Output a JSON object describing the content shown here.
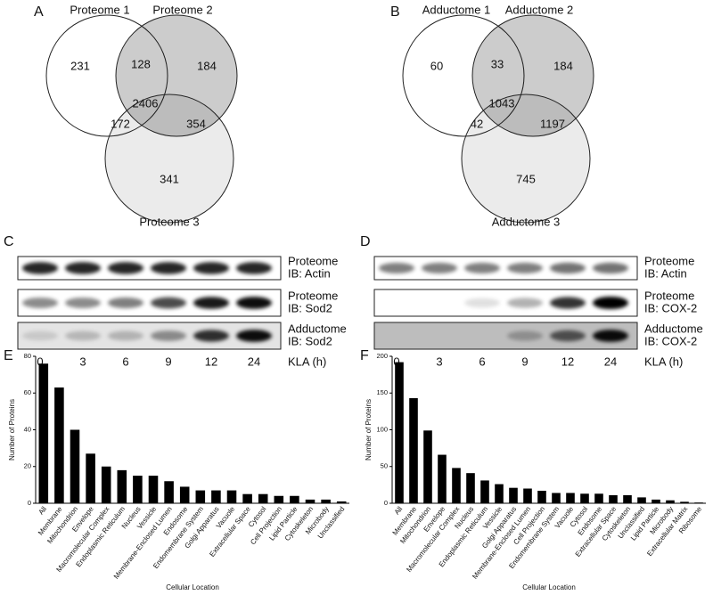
{
  "chart_data": [
    {
      "type": "venn",
      "label": "A",
      "sets": [
        "Proteome 1",
        "Proteome 2",
        "Proteome 3"
      ],
      "counts": {
        "1": 231,
        "12": 128,
        "2": 184,
        "13": 172,
        "123": 2406,
        "23": 354,
        "3": 341
      }
    },
    {
      "type": "venn",
      "label": "B",
      "sets": [
        "Adductome 1",
        "Adductome 2",
        "Adductome 3"
      ],
      "counts": {
        "1": 60,
        "12": 33,
        "2": 184,
        "13": 42,
        "123": 1043,
        "23": 1197,
        "3": 745
      }
    },
    {
      "type": "blot",
      "label": "C",
      "rows": [
        [
          "Proteome",
          "IB: Actin"
        ],
        [
          "Proteome",
          "IB: Sod2"
        ],
        [
          "Adductome",
          "IB: Sod2"
        ]
      ],
      "lanes": [
        0,
        3,
        6,
        9,
        12,
        24
      ],
      "xlabel": "KLA (h)"
    },
    {
      "type": "blot",
      "label": "D",
      "rows": [
        [
          "Proteome",
          "IB: Actin"
        ],
        [
          "Proteome",
          "IB: COX-2"
        ],
        [
          "Adductome",
          "IB: COX-2"
        ]
      ],
      "lanes": [
        0,
        3,
        6,
        9,
        12,
        24
      ],
      "xlabel": "KLA (h)"
    },
    {
      "type": "bar",
      "label": "E",
      "ylabel": "Number of Proteins",
      "xlabel": "Cellular Location",
      "color": "#000000",
      "categories": [
        "All",
        "Membrane",
        "Mitochondrion",
        "Envelope",
        "Macromolecular Complex",
        "Endoplasmic Reticulum",
        "Nucleus",
        "Vessicle",
        "Membrane-Enclosed Lumen",
        "Endosome",
        "Endomembrane System",
        "Golgi Apparatus",
        "Vacuole",
        "Extracellular Space",
        "Cytosol",
        "Cell Projection",
        "Lipid Particle",
        "Cytoskeleton",
        "Microbody",
        "Unclassified"
      ],
      "values": [
        76,
        63,
        40,
        27,
        20,
        18,
        15,
        15,
        12,
        9,
        7,
        7,
        7,
        5,
        5,
        4,
        4,
        2,
        2,
        1
      ],
      "ylim": [
        0,
        80
      ],
      "yticks": [
        0,
        20,
        40,
        60,
        80
      ]
    },
    {
      "type": "bar",
      "label": "F",
      "ylabel": "Number of Proteins",
      "xlabel": "Cellular Location",
      "color": "#000000",
      "categories": [
        "All",
        "Membrane",
        "Mitochondrion",
        "Envelope",
        "Macromolecular Complex",
        "Nucleus",
        "Endoplasmic Reticulum",
        "Vessicle",
        "Golgi Apparatus",
        "Membrane-Enclosed Lumen",
        "Cell Projection",
        "Endomembrane System",
        "Vacuole",
        "Cytosol",
        "Endosome",
        "Extracellular Space",
        "Cytoskeleton",
        "Unclassified",
        "Lipid Particle",
        "Microbody",
        "Extracellular Matrix",
        "Ribosome"
      ],
      "values": [
        192,
        143,
        99,
        66,
        48,
        41,
        31,
        26,
        21,
        20,
        17,
        14,
        14,
        13,
        13,
        11,
        11,
        8,
        5,
        4,
        2,
        1
      ],
      "ylim": [
        0,
        200
      ],
      "yticks": [
        0,
        50,
        100,
        150,
        200
      ]
    }
  ]
}
